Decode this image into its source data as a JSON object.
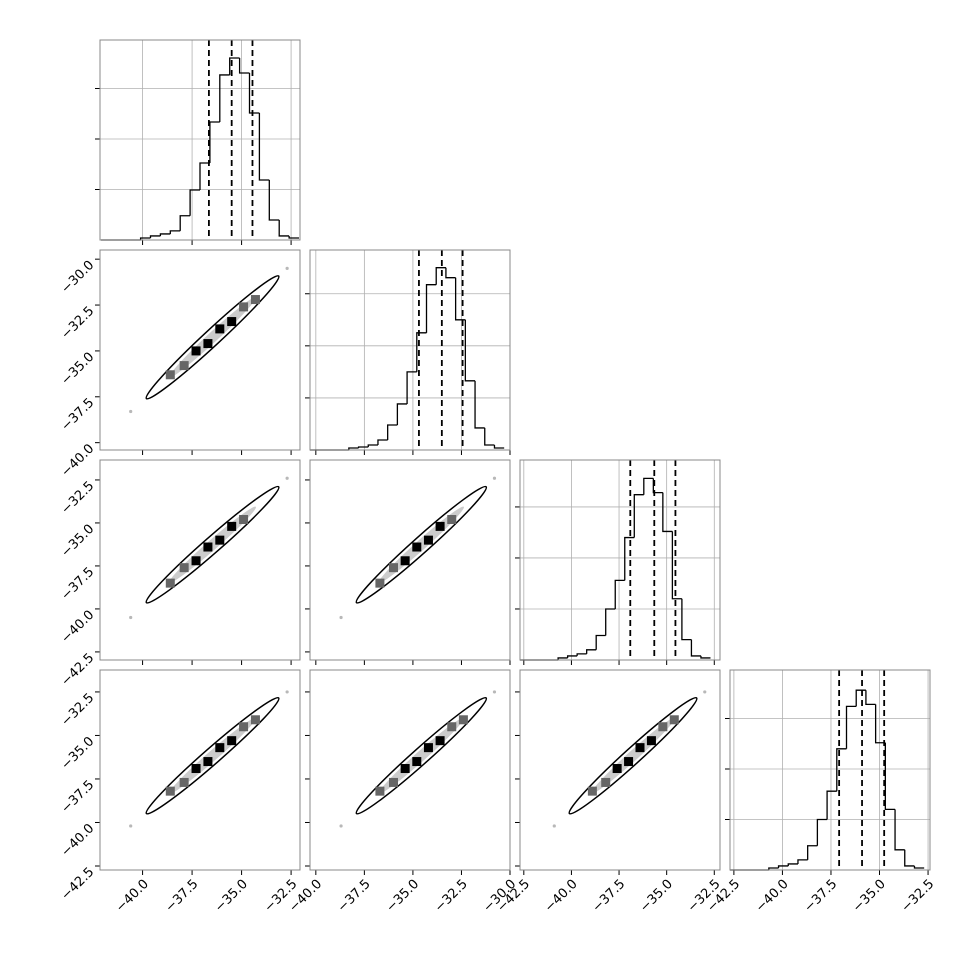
{
  "chart_data": [
    {
      "type": "histogram",
      "bins": [
        -42.1,
        -41.6,
        -41.1,
        -40.6,
        -40.1,
        -39.6,
        -39.1,
        -38.6,
        -38.1,
        -37.6,
        -37.1,
        -36.6,
        -36.1,
        -35.6,
        -35.1,
        -34.6,
        -34.1,
        -33.6,
        -33.1,
        -32.6,
        -32.1
      ],
      "values": [
        0,
        0,
        0,
        0,
        20,
        40,
        60,
        90,
        240,
        495,
        762,
        1168,
        1634,
        1802,
        1653,
        1257,
        594,
        198,
        40,
        20
      ],
      "quantiles": [
        -36.65,
        -35.5,
        -34.45
      ],
      "xlim": [
        -42.15,
        -32.05
      ],
      "xticks": [
        -40,
        -37.5,
        -35,
        -32.5
      ],
      "ylim": [
        0,
        1980
      ],
      "yticks": [
        500,
        1000,
        1500
      ],
      "grid": true,
      "color": "#000000"
    },
    {
      "type": "scatter",
      "x": [
        -40.6,
        -39.4,
        -38.6,
        -37.9,
        -37.3,
        -36.7,
        -36.1,
        -35.5,
        -34.9,
        -34.3,
        -33.6,
        -32.7
      ],
      "y": [
        -38.3,
        -37.3,
        -36.3,
        -35.8,
        -35.0,
        -34.6,
        -33.8,
        -33.4,
        -32.6,
        -32.2,
        -31.3,
        -30.5
      ],
      "xlim": [
        -42.15,
        -32.05
      ],
      "xticks": [
        -40,
        -37.5,
        -35,
        -32.5
      ],
      "ylim": [
        -40.4,
        -29.5
      ],
      "yticks": [
        {
          "value": -30,
          "label": "−30.0"
        },
        {
          "value": -32.5,
          "label": "−32.5"
        },
        {
          "value": -35,
          "label": "−35.0"
        },
        {
          "value": -37.5,
          "label": "−37.5"
        },
        {
          "value": -40,
          "label": "−40.0"
        }
      ],
      "grid": false,
      "color": "#000000"
    },
    {
      "type": "histogram",
      "bins": [
        -40.3,
        -39.8,
        -39.3,
        -38.8,
        -38.3,
        -37.8,
        -37.3,
        -36.8,
        -36.3,
        -35.8,
        -35.3,
        -34.8,
        -34.3,
        -33.8,
        -33.3,
        -32.8,
        -32.3,
        -31.8,
        -31.3,
        -30.8,
        -30.3
      ],
      "values": [
        0,
        0,
        0,
        0,
        19,
        29,
        48,
        96,
        240,
        442,
        750,
        1125,
        1587,
        1750,
        1654,
        1250,
        664,
        212,
        48,
        19
      ],
      "quantiles": [
        -34.69,
        -33.51,
        -32.44
      ],
      "xlim": [
        -40.3,
        -30.0
      ],
      "xticks": [
        -40,
        -37.5,
        -35,
        -32.5,
        -30
      ],
      "ylim": [
        0,
        1920
      ],
      "yticks": [
        500,
        1000,
        1500
      ],
      "grid": true,
      "color": "#000000"
    },
    {
      "type": "scatter",
      "x": [
        -40.6,
        -39.4,
        -38.6,
        -37.9,
        -37.3,
        -36.7,
        -36.1,
        -35.5,
        -34.9,
        -34.3,
        -33.6,
        -32.7
      ],
      "y": [
        -40.5,
        -39.1,
        -38.5,
        -37.6,
        -37.2,
        -36.4,
        -36.0,
        -35.2,
        -34.8,
        -34.0,
        -33.5,
        -32.4
      ],
      "xlim": [
        -42.15,
        -32.05
      ],
      "xticks": [
        -40,
        -37.5,
        -35,
        -32.5
      ],
      "ylim": [
        -42.97,
        -31.34
      ],
      "yticks": [
        {
          "value": -32.5,
          "label": "−32.5"
        },
        {
          "value": -35,
          "label": "−35.0"
        },
        {
          "value": -37.5,
          "label": "−37.5"
        },
        {
          "value": -40,
          "label": "−40.0"
        },
        {
          "value": -42.5,
          "label": "−42.5"
        }
      ],
      "grid": false,
      "color": "#000000"
    },
    {
      "type": "scatter",
      "x": [
        -38.7,
        -37.5,
        -36.7,
        -36.0,
        -35.4,
        -34.8,
        -34.2,
        -33.6,
        -33.0,
        -32.4,
        -31.7,
        -30.8
      ],
      "y": [
        -40.5,
        -39.1,
        -38.5,
        -37.6,
        -37.2,
        -36.4,
        -36.0,
        -35.2,
        -34.8,
        -34.0,
        -33.5,
        -32.4
      ],
      "xlim": [
        -40.3,
        -30.0
      ],
      "xticks": [
        -40,
        -37.5,
        -35,
        -32.5,
        -30
      ],
      "ylim": [
        -42.97,
        -31.34
      ],
      "yticks": [
        -32.5,
        -35,
        -37.5,
        -40,
        -42.5
      ],
      "grid": false,
      "color": "#000000"
    },
    {
      "type": "histogram",
      "bins": [
        -42.7,
        -42.2,
        -41.7,
        -41.2,
        -40.7,
        -40.2,
        -39.7,
        -39.2,
        -38.7,
        -38.2,
        -37.7,
        -37.2,
        -36.7,
        -36.2,
        -35.7,
        -35.2,
        -34.7,
        -34.2,
        -33.7,
        -33.2,
        -32.7
      ],
      "values": [
        0,
        0,
        0,
        0,
        20,
        40,
        60,
        100,
        240,
        500,
        780,
        1200,
        1620,
        1780,
        1640,
        1260,
        600,
        200,
        40,
        20
      ],
      "quantiles": [
        -36.91,
        -35.65,
        -34.54
      ],
      "xlim": [
        -42.7,
        -32.2
      ],
      "xticks": [
        -42.5,
        -40,
        -37.5,
        -35,
        -32.5
      ],
      "ylim": [
        0,
        1960
      ],
      "yticks": [
        500,
        1000,
        1500
      ],
      "grid": true,
      "color": "#000000"
    },
    {
      "type": "scatter",
      "x": [
        -40.6,
        -39.4,
        -38.6,
        -37.9,
        -37.3,
        -36.7,
        -36.1,
        -35.5,
        -34.9,
        -34.3,
        -33.6,
        -32.7
      ],
      "y": [
        -40.2,
        -39.2,
        -38.2,
        -37.7,
        -36.9,
        -36.5,
        -35.7,
        -35.3,
        -34.5,
        -34.1,
        -33.2,
        -32.5
      ],
      "xlim": [
        -42.15,
        -32.05
      ],
      "xticks": [
        {
          "value": -40,
          "label": "−40.0"
        },
        {
          "value": -37.5,
          "label": "−37.5"
        },
        {
          "value": -35,
          "label": "−35.0"
        },
        {
          "value": -32.5,
          "label": "−32.5"
        }
      ],
      "ylim": [
        -42.73,
        -31.24
      ],
      "yticks": [
        {
          "value": -32.5,
          "label": "−32.5"
        },
        {
          "value": -35,
          "label": "−35.0"
        },
        {
          "value": -37.5,
          "label": "−37.5"
        },
        {
          "value": -40,
          "label": "−40.0"
        },
        {
          "value": -42.5,
          "label": "−42.5"
        }
      ],
      "grid": false,
      "color": "#000000"
    },
    {
      "type": "scatter",
      "x": [
        -38.7,
        -37.5,
        -36.7,
        -36.0,
        -35.4,
        -34.8,
        -34.2,
        -33.6,
        -33.0,
        -32.4,
        -31.7,
        -30.8
      ],
      "y": [
        -40.2,
        -39.2,
        -38.2,
        -37.7,
        -36.9,
        -36.5,
        -35.7,
        -35.3,
        -34.5,
        -34.1,
        -33.2,
        -32.5
      ],
      "xlim": [
        -40.3,
        -30.0
      ],
      "xticks": [
        {
          "value": -40,
          "label": "−40.0"
        },
        {
          "value": -37.5,
          "label": "−37.5"
        },
        {
          "value": -35,
          "label": "−35.0"
        },
        {
          "value": -32.5,
          "label": "−32.5"
        },
        {
          "value": -30,
          "label": "−30.0"
        }
      ],
      "ylim": [
        -42.73,
        -31.24
      ],
      "yticks": [
        -32.5,
        -35,
        -37.5,
        -40,
        -42.5
      ],
      "grid": false,
      "color": "#000000"
    },
    {
      "type": "scatter",
      "x": [
        -40.9,
        -39.7,
        -38.9,
        -38.2,
        -37.6,
        -37.0,
        -36.4,
        -35.8,
        -35.2,
        -34.6,
        -33.9,
        -33.0
      ],
      "y": [
        -40.2,
        -39.2,
        -38.2,
        -37.7,
        -36.9,
        -36.5,
        -35.7,
        -35.3,
        -34.5,
        -34.1,
        -33.2,
        -32.5
      ],
      "xlim": [
        -42.7,
        -32.2
      ],
      "xticks": [
        {
          "value": -42.5,
          "label": "−42.5"
        },
        {
          "value": -40,
          "label": "−40.0"
        },
        {
          "value": -37.5,
          "label": "−37.5"
        },
        {
          "value": -35,
          "label": "−35.0"
        },
        {
          "value": -32.5,
          "label": "−32.5"
        }
      ],
      "ylim": [
        -42.73,
        -31.24
      ],
      "yticks": [
        -32.5,
        -35,
        -37.5,
        -40,
        -42.5
      ],
      "grid": false,
      "color": "#000000"
    },
    {
      "type": "histogram",
      "bins": [
        -42.7,
        -42.2,
        -41.7,
        -41.2,
        -40.7,
        -40.2,
        -39.7,
        -39.2,
        -38.7,
        -38.2,
        -37.7,
        -37.2,
        -36.7,
        -36.2,
        -35.7,
        -35.2,
        -34.7,
        -34.2,
        -33.7,
        -33.2,
        -32.7
      ],
      "values": [
        0,
        0,
        0,
        0,
        20,
        40,
        60,
        100,
        240,
        500,
        780,
        1200,
        1620,
        1780,
        1640,
        1260,
        600,
        200,
        40,
        20
      ],
      "quantiles": [
        -37.08,
        -35.9,
        -34.76
      ],
      "xlim": [
        -42.7,
        -32.4
      ],
      "xticks": [
        {
          "value": -42.5,
          "label": "−42.5"
        },
        {
          "value": -40,
          "label": "−40.0"
        },
        {
          "value": -37.5,
          "label": "−37.5"
        },
        {
          "value": -35,
          "label": "−35.0"
        },
        {
          "value": -32.5,
          "label": "−32.5"
        }
      ],
      "ylim": [
        0,
        1980
      ],
      "yticks": [
        500,
        1000,
        1500
      ],
      "grid": true,
      "color": "#000000"
    }
  ]
}
